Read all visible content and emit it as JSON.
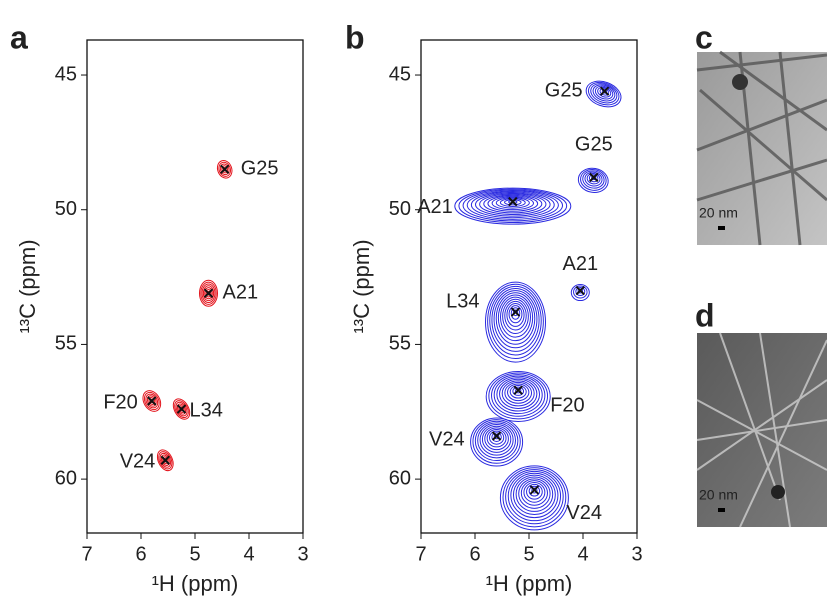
{
  "chart_data": [
    {
      "type": "scatter",
      "panel": "a",
      "xlabel": "¹H (ppm)",
      "ylabel": "¹³C (ppm)",
      "color": "#e3141c",
      "xlim": [
        7,
        3
      ],
      "xticks": [
        7,
        6,
        5,
        4,
        3
      ],
      "ylim": [
        62,
        43.7
      ],
      "yticks": [
        45,
        50,
        55,
        60
      ],
      "x": [
        4.45,
        4.75,
        5.8,
        5.25,
        5.55
      ],
      "y": [
        48.5,
        53.1,
        57.1,
        57.4,
        59.3
      ],
      "labels": [
        "G25",
        "A21",
        "F20",
        "L34",
        "V24"
      ]
    },
    {
      "type": "scatter",
      "panel": "b",
      "xlabel": "¹H (ppm)",
      "ylabel": "¹³C (ppm)",
      "color": "#2a2ae0",
      "xlim": [
        7,
        3
      ],
      "xticks": [
        7,
        6,
        5,
        4,
        3
      ],
      "ylim": [
        62,
        43.7
      ],
      "yticks": [
        45,
        50,
        55,
        60
      ],
      "x": [
        3.6,
        3.8,
        5.3,
        4.05,
        5.25,
        5.2,
        5.6,
        4.9
      ],
      "y": [
        45.6,
        48.8,
        49.7,
        53.0,
        53.8,
        56.7,
        58.4,
        60.4
      ],
      "labels": [
        "G25",
        "G25",
        "A21",
        "A21",
        "L34",
        "F20",
        "V24",
        "V24"
      ]
    }
  ],
  "images": [
    {
      "panel": "c",
      "scale_bar": "20 nm"
    },
    {
      "panel": "d",
      "scale_bar": "20 nm"
    }
  ]
}
